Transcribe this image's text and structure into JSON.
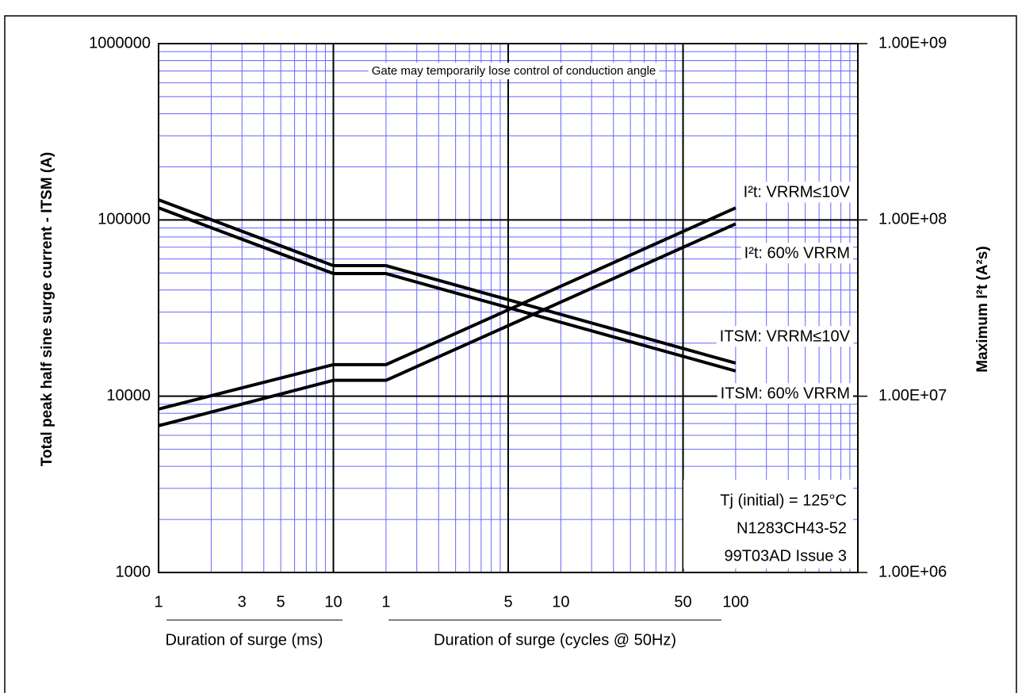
{
  "chart_data": {
    "type": "line",
    "annotation": "Gate may temporarily lose control of conduction angle",
    "notes": [
      "Tj (initial) = 125°C",
      "N1283CH43-52",
      "99T03AD Issue 3"
    ],
    "x_label": "Duration of surge (ms)",
    "x2_label": "Duration of surge (cycles @ 50Hz)",
    "y_label": "Total peak half sine surge current - ITSM (A)",
    "y2_label": "Maximum I²t (A²s)",
    "log_x": true,
    "log_y": true,
    "grid": true,
    "xlim": [
      1,
      10000
    ],
    "xticks": [
      1,
      3,
      5,
      10
    ],
    "x2ticks": [
      {
        "value": 20,
        "label": "1"
      },
      {
        "value": 100,
        "label": "5"
      },
      {
        "value": 200,
        "label": "10"
      },
      {
        "value": 1000,
        "label": "50"
      },
      {
        "value": 2000,
        "label": "100"
      }
    ],
    "ylim": [
      1000,
      1000000
    ],
    "yticks": [
      1000,
      10000,
      100000,
      1000000
    ],
    "y2lim": [
      1000000,
      1000000000
    ],
    "y2ticks": [
      {
        "value": 1000000,
        "label": "1.00E+06"
      },
      {
        "value": 10000000,
        "label": "1.00E+07"
      },
      {
        "value": 100000000,
        "label": "1.00E+08"
      },
      {
        "value": 1000000000,
        "label": "1.00E+09"
      }
    ],
    "x": [
      1,
      10,
      20,
      2000
    ],
    "series": [
      {
        "name": "I²t: VRRM≤10V",
        "color": "#000000",
        "axis": "y2",
        "values": [
          8450000,
          15100000,
          15100000,
          117000000
        ]
      },
      {
        "name": "I²t: 60% VRRM",
        "color": "#000000",
        "axis": "y2",
        "values": [
          6800000,
          12300000,
          12300000,
          95000000
        ]
      },
      {
        "name": "ITSM: VRRM≤10V",
        "color": "#000000",
        "values": [
          130000,
          55000,
          55000,
          15400
        ]
      },
      {
        "name": "ITSM: 60% VRRM",
        "color": "#000000",
        "values": [
          117000,
          49600,
          49600,
          13900
        ]
      }
    ]
  }
}
